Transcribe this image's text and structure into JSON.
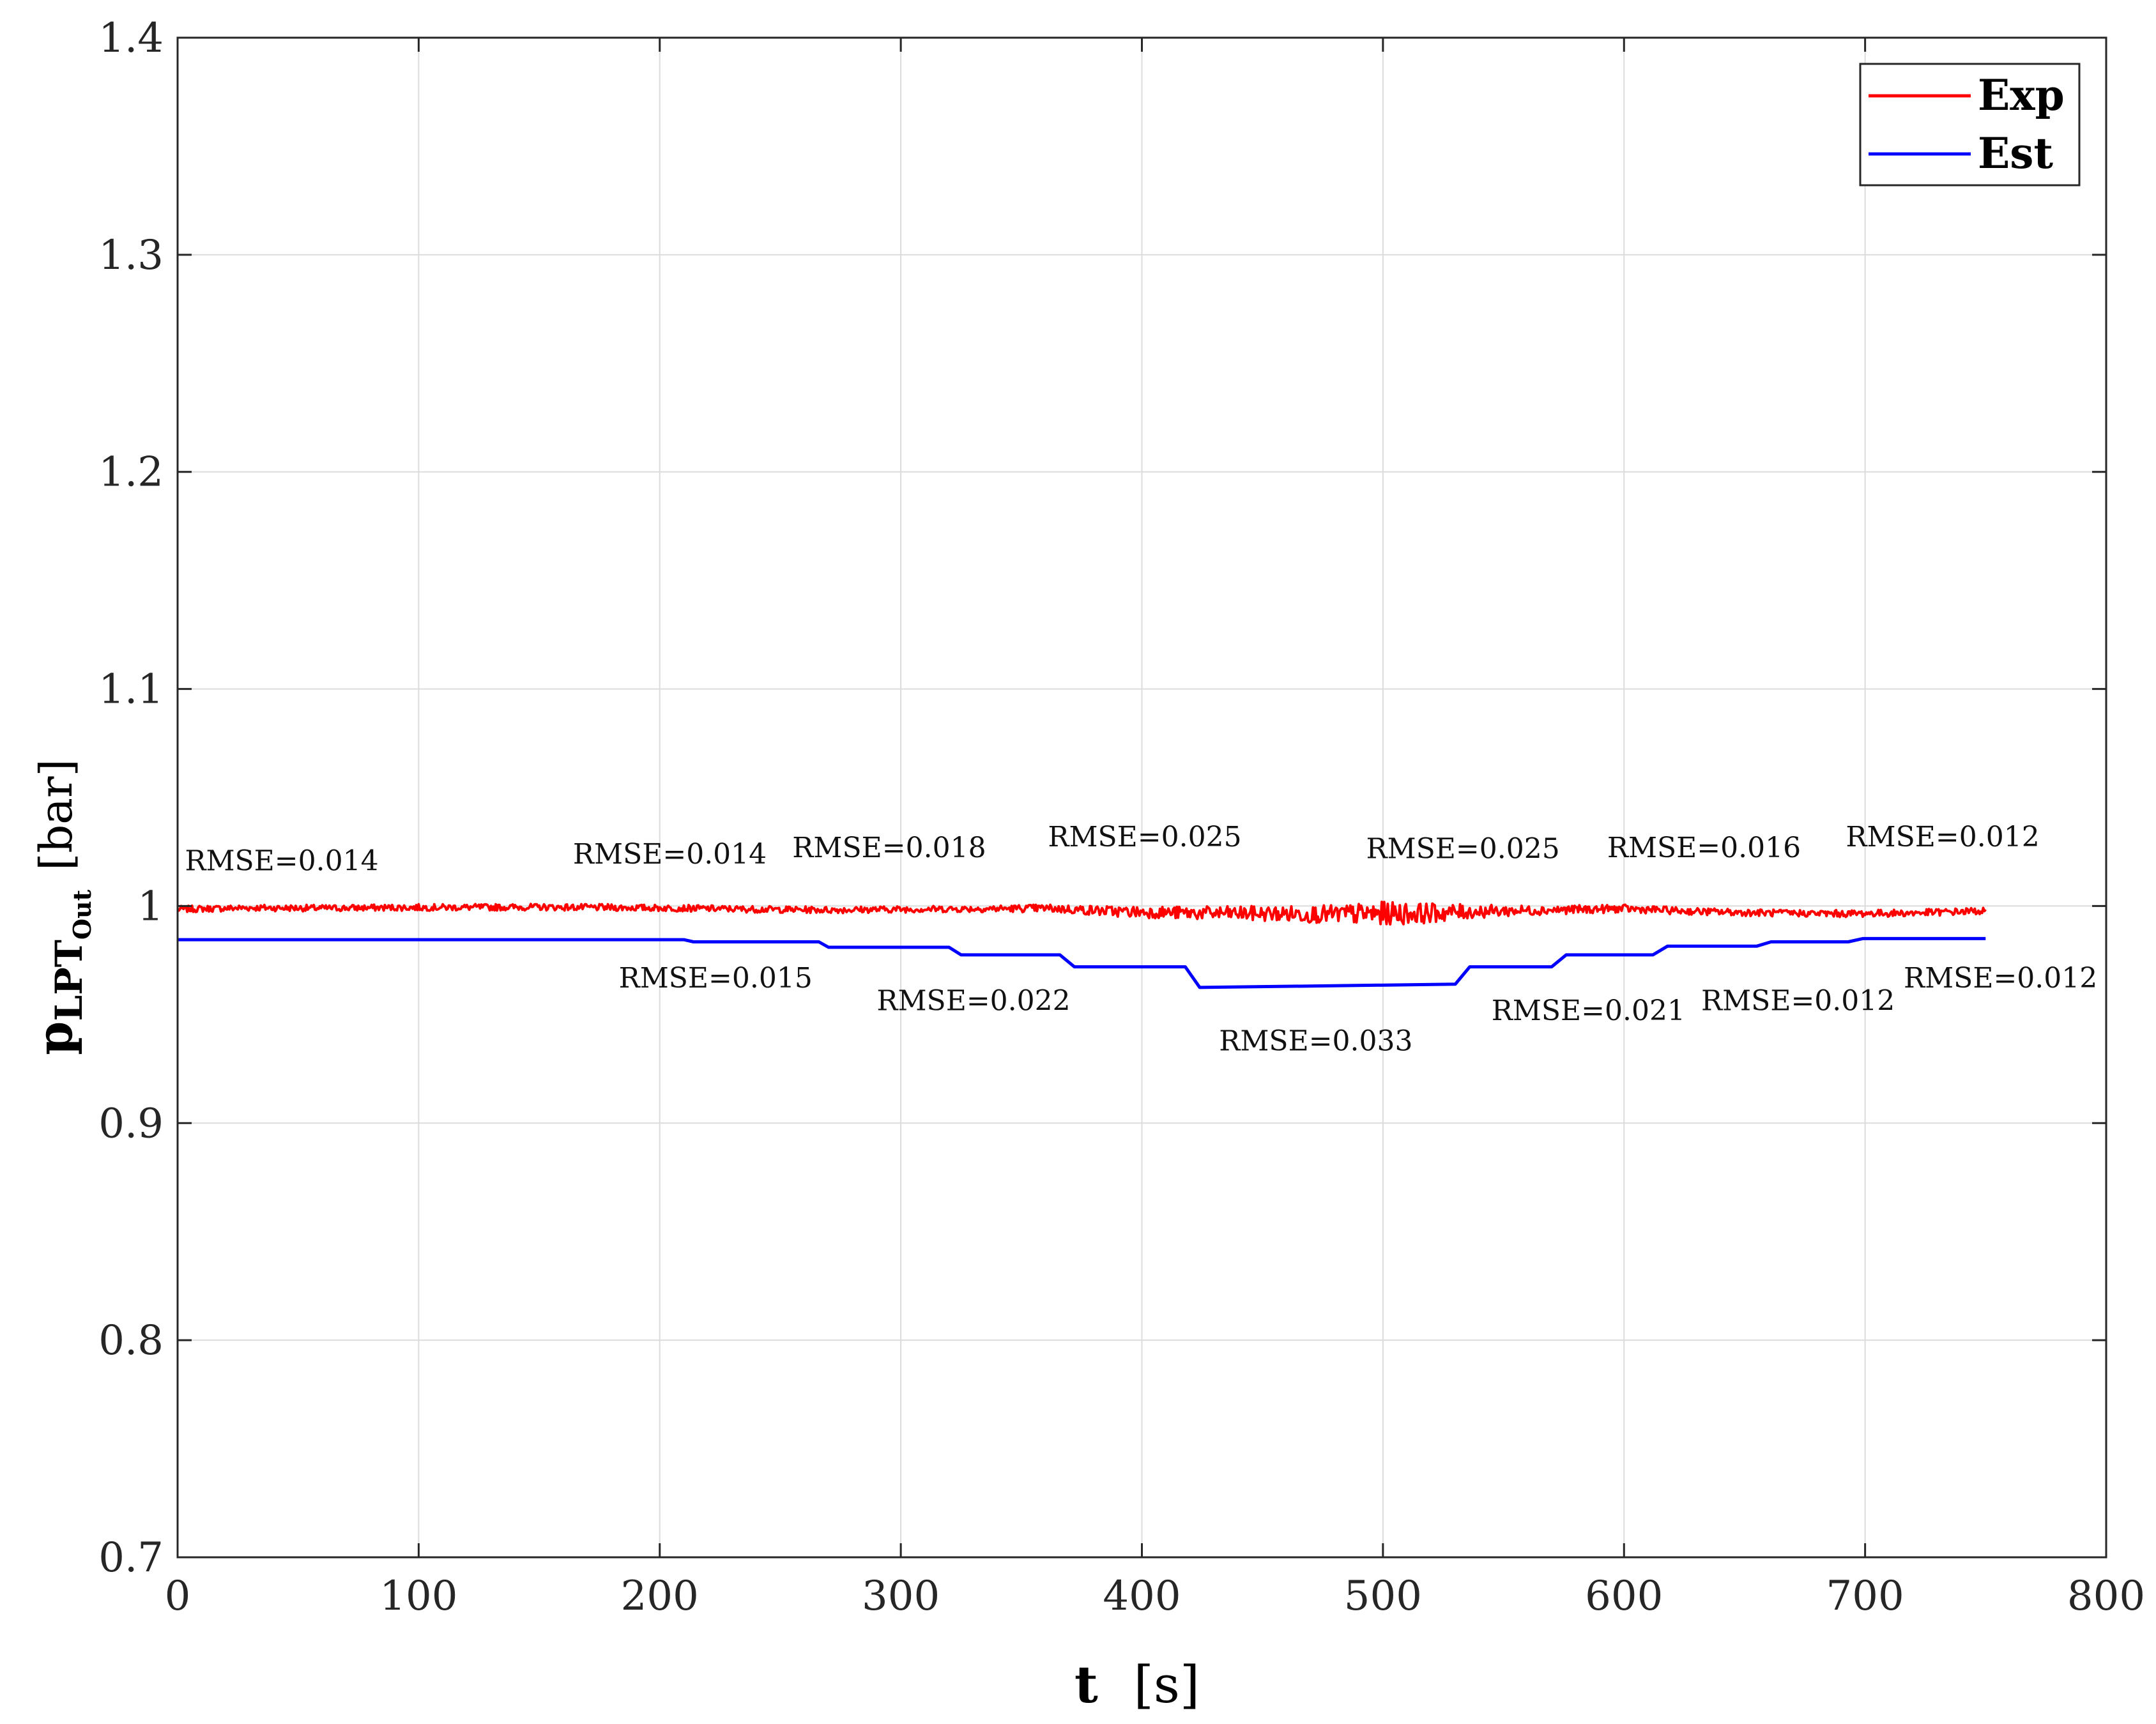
{
  "chart_data": {
    "type": "line",
    "xlabel": "t",
    "xlabel_unit": "[s]",
    "ylabel_main": "p",
    "ylabel_sub1": "LPT",
    "ylabel_sub2": "Out",
    "ylabel_unit": "[bar]",
    "xlim": [
      0,
      800
    ],
    "ylim": [
      0.7,
      1.4
    ],
    "xticks": [
      0,
      100,
      200,
      300,
      400,
      500,
      600,
      700,
      800
    ],
    "yticks": [
      0.7,
      0.8,
      0.9,
      1.0,
      1.1,
      1.2,
      1.3,
      1.4
    ],
    "xtick_labels": [
      "0",
      "100",
      "200",
      "300",
      "400",
      "500",
      "600",
      "700",
      "800"
    ],
    "ytick_labels": [
      "0.7",
      "0.8",
      "0.9",
      "1",
      "1.1",
      "1.2",
      "1.3",
      "1.4"
    ],
    "grid": true,
    "legend_position": "top-right",
    "series": [
      {
        "name": "Exp",
        "color": "#ff0000",
        "x": [
          0,
          30,
          60,
          90,
          120,
          150,
          180,
          210,
          240,
          270,
          300,
          330,
          360,
          390,
          420,
          450,
          480,
          500,
          520,
          540,
          570,
          600,
          630,
          660,
          690,
          720,
          750
        ],
        "y": [
          0.9985,
          0.9992,
          0.999,
          0.9993,
          0.9994,
          0.9995,
          0.9993,
          0.999,
          0.9985,
          0.9982,
          0.9985,
          0.9987,
          0.999,
          0.9975,
          0.9968,
          0.9965,
          0.9962,
          0.9965,
          0.9968,
          0.9975,
          0.9982,
          0.9988,
          0.9975,
          0.9968,
          0.9965,
          0.9968,
          0.9978
        ],
        "noise_amplitude": [
          0.0015,
          0.0015,
          0.0015,
          0.0015,
          0.0015,
          0.0015,
          0.0015,
          0.0015,
          0.0015,
          0.0015,
          0.0015,
          0.0015,
          0.0018,
          0.0025,
          0.003,
          0.0035,
          0.0042,
          0.0055,
          0.0045,
          0.003,
          0.002,
          0.0018,
          0.0016,
          0.0016,
          0.0016,
          0.0016,
          0.0016
        ]
      },
      {
        "name": "Est",
        "color": "#0000ff",
        "x": [
          0,
          210,
          214,
          266,
          270,
          320,
          325,
          366,
          372,
          418,
          424,
          530,
          536,
          570,
          576,
          612,
          618,
          655,
          661,
          693,
          699,
          750
        ],
        "y": [
          0.9845,
          0.9845,
          0.9835,
          0.9835,
          0.981,
          0.981,
          0.9775,
          0.9775,
          0.972,
          0.972,
          0.9625,
          0.964,
          0.972,
          0.972,
          0.9775,
          0.9775,
          0.9815,
          0.9815,
          0.9835,
          0.9835,
          0.985,
          0.985
        ]
      }
    ],
    "annotations": [
      {
        "text": "RMSE=0.014",
        "x": 3,
        "y": 1.0165
      },
      {
        "text": "RMSE=0.014",
        "x": 164,
        "y": 1.0195
      },
      {
        "text": "RMSE=0.018",
        "x": 255,
        "y": 1.0225
      },
      {
        "text": "RMSE=0.025",
        "x": 361,
        "y": 1.0275
      },
      {
        "text": "RMSE=0.025",
        "x": 493,
        "y": 1.022
      },
      {
        "text": "RMSE=0.016",
        "x": 593,
        "y": 1.0225
      },
      {
        "text": "RMSE=0.012",
        "x": 692,
        "y": 1.0275
      },
      {
        "text": "RMSE=0.015",
        "x": 183,
        "y": 0.9625
      },
      {
        "text": "RMSE=0.022",
        "x": 290,
        "y": 0.952
      },
      {
        "text": "RMSE=0.033",
        "x": 432,
        "y": 0.9335
      },
      {
        "text": "RMSE=0.021",
        "x": 545,
        "y": 0.9475
      },
      {
        "text": "RMSE=0.012",
        "x": 632,
        "y": 0.952
      },
      {
        "text": "RMSE=0.012",
        "x": 716,
        "y": 0.9625
      }
    ]
  }
}
